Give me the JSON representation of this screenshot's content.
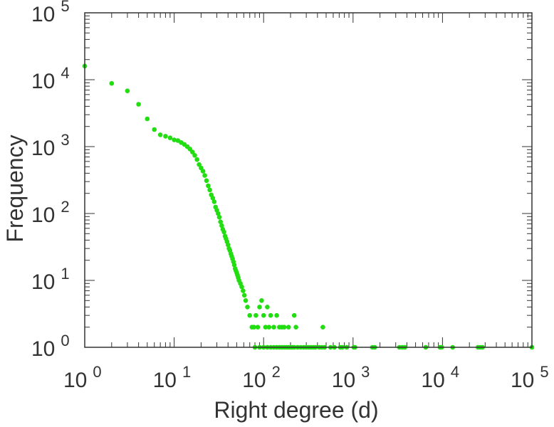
{
  "chart_data": {
    "type": "scatter",
    "xlabel": "Right degree (d)",
    "ylabel": "Frequency",
    "xscale": "log",
    "yscale": "log",
    "xlim": [
      1,
      100000
    ],
    "ylim": [
      1,
      100000
    ],
    "grid": false,
    "legend": "none",
    "tick_base": "10",
    "x_tick_exponents": [
      "0",
      "1",
      "2",
      "3",
      "4",
      "5"
    ],
    "y_tick_exponents": [
      "0",
      "1",
      "2",
      "3",
      "4",
      "5"
    ],
    "point_color": "#22dd11",
    "series": [
      {
        "points": [
          [
            1,
            16000
          ],
          [
            2,
            8800
          ],
          [
            3,
            6800
          ],
          [
            4,
            4300
          ],
          [
            5,
            2600
          ],
          [
            6,
            1800
          ],
          [
            7,
            1500
          ],
          [
            8,
            1430
          ],
          [
            9,
            1350
          ],
          [
            10,
            1260
          ],
          [
            11,
            1230
          ],
          [
            12,
            1150
          ],
          [
            13,
            1080
          ],
          [
            14,
            1000
          ],
          [
            15,
            920
          ],
          [
            16,
            830
          ],
          [
            17,
            740
          ],
          [
            18,
            640
          ],
          [
            19,
            540
          ],
          [
            20,
            480
          ],
          [
            21,
            430
          ],
          [
            22,
            370
          ],
          [
            23,
            310
          ],
          [
            24,
            260
          ],
          [
            25,
            225
          ],
          [
            26,
            190
          ],
          [
            27,
            170
          ],
          [
            28,
            150
          ],
          [
            29,
            125
          ],
          [
            30,
            112
          ],
          [
            31,
            100
          ],
          [
            32,
            88
          ],
          [
            33,
            75
          ],
          [
            34,
            66
          ],
          [
            35,
            58
          ],
          [
            36,
            53
          ],
          [
            37,
            46
          ],
          [
            38,
            42
          ],
          [
            39,
            38
          ],
          [
            40,
            34
          ],
          [
            41,
            30
          ],
          [
            42,
            28
          ],
          [
            43,
            25
          ],
          [
            44,
            23
          ],
          [
            45,
            21
          ],
          [
            46,
            19
          ],
          [
            47,
            17
          ],
          [
            48,
            15
          ],
          [
            49,
            14
          ],
          [
            50,
            13
          ],
          [
            51,
            12
          ],
          [
            52,
            11
          ],
          [
            53,
            10
          ],
          [
            55,
            9
          ],
          [
            57,
            8
          ],
          [
            59,
            7
          ],
          [
            61,
            6
          ],
          [
            63,
            5
          ],
          [
            66,
            4
          ],
          [
            70,
            3
          ],
          [
            74,
            2
          ],
          [
            78,
            2
          ],
          [
            82,
            3
          ],
          [
            86,
            2
          ],
          [
            90,
            4
          ],
          [
            95,
            5
          ],
          [
            100,
            3
          ],
          [
            105,
            2
          ],
          [
            110,
            4
          ],
          [
            115,
            2
          ],
          [
            120,
            3
          ],
          [
            130,
            2
          ],
          [
            140,
            3
          ],
          [
            150,
            2
          ],
          [
            160,
            2
          ],
          [
            170,
            2
          ],
          [
            190,
            2
          ],
          [
            220,
            3
          ],
          [
            230,
            2
          ],
          [
            460,
            2
          ],
          [
            80,
            1
          ],
          [
            90,
            1
          ],
          [
            100,
            1
          ],
          [
            110,
            1
          ],
          [
            120,
            1
          ],
          [
            130,
            1
          ],
          [
            140,
            1
          ],
          [
            150,
            1
          ],
          [
            160,
            1
          ],
          [
            170,
            1
          ],
          [
            180,
            1
          ],
          [
            190,
            1
          ],
          [
            200,
            1
          ],
          [
            210,
            1
          ],
          [
            220,
            1
          ],
          [
            240,
            1
          ],
          [
            260,
            1
          ],
          [
            280,
            1
          ],
          [
            300,
            1
          ],
          [
            320,
            1
          ],
          [
            340,
            1
          ],
          [
            360,
            1
          ],
          [
            380,
            1
          ],
          [
            420,
            1
          ],
          [
            450,
            1
          ],
          [
            480,
            1
          ],
          [
            560,
            1
          ],
          [
            620,
            1
          ],
          [
            720,
            1
          ],
          [
            760,
            1
          ],
          [
            850,
            1
          ],
          [
            1020,
            1
          ],
          [
            1050,
            1
          ],
          [
            1650,
            1
          ],
          [
            1750,
            1
          ],
          [
            3300,
            1
          ],
          [
            3550,
            1
          ],
          [
            3800,
            1
          ],
          [
            6500,
            1
          ],
          [
            9400,
            1
          ],
          [
            9800,
            1
          ],
          [
            13000,
            1
          ],
          [
            25000,
            1
          ],
          [
            26500,
            1
          ],
          [
            28000,
            1
          ],
          [
            100000,
            1
          ]
        ]
      }
    ]
  }
}
